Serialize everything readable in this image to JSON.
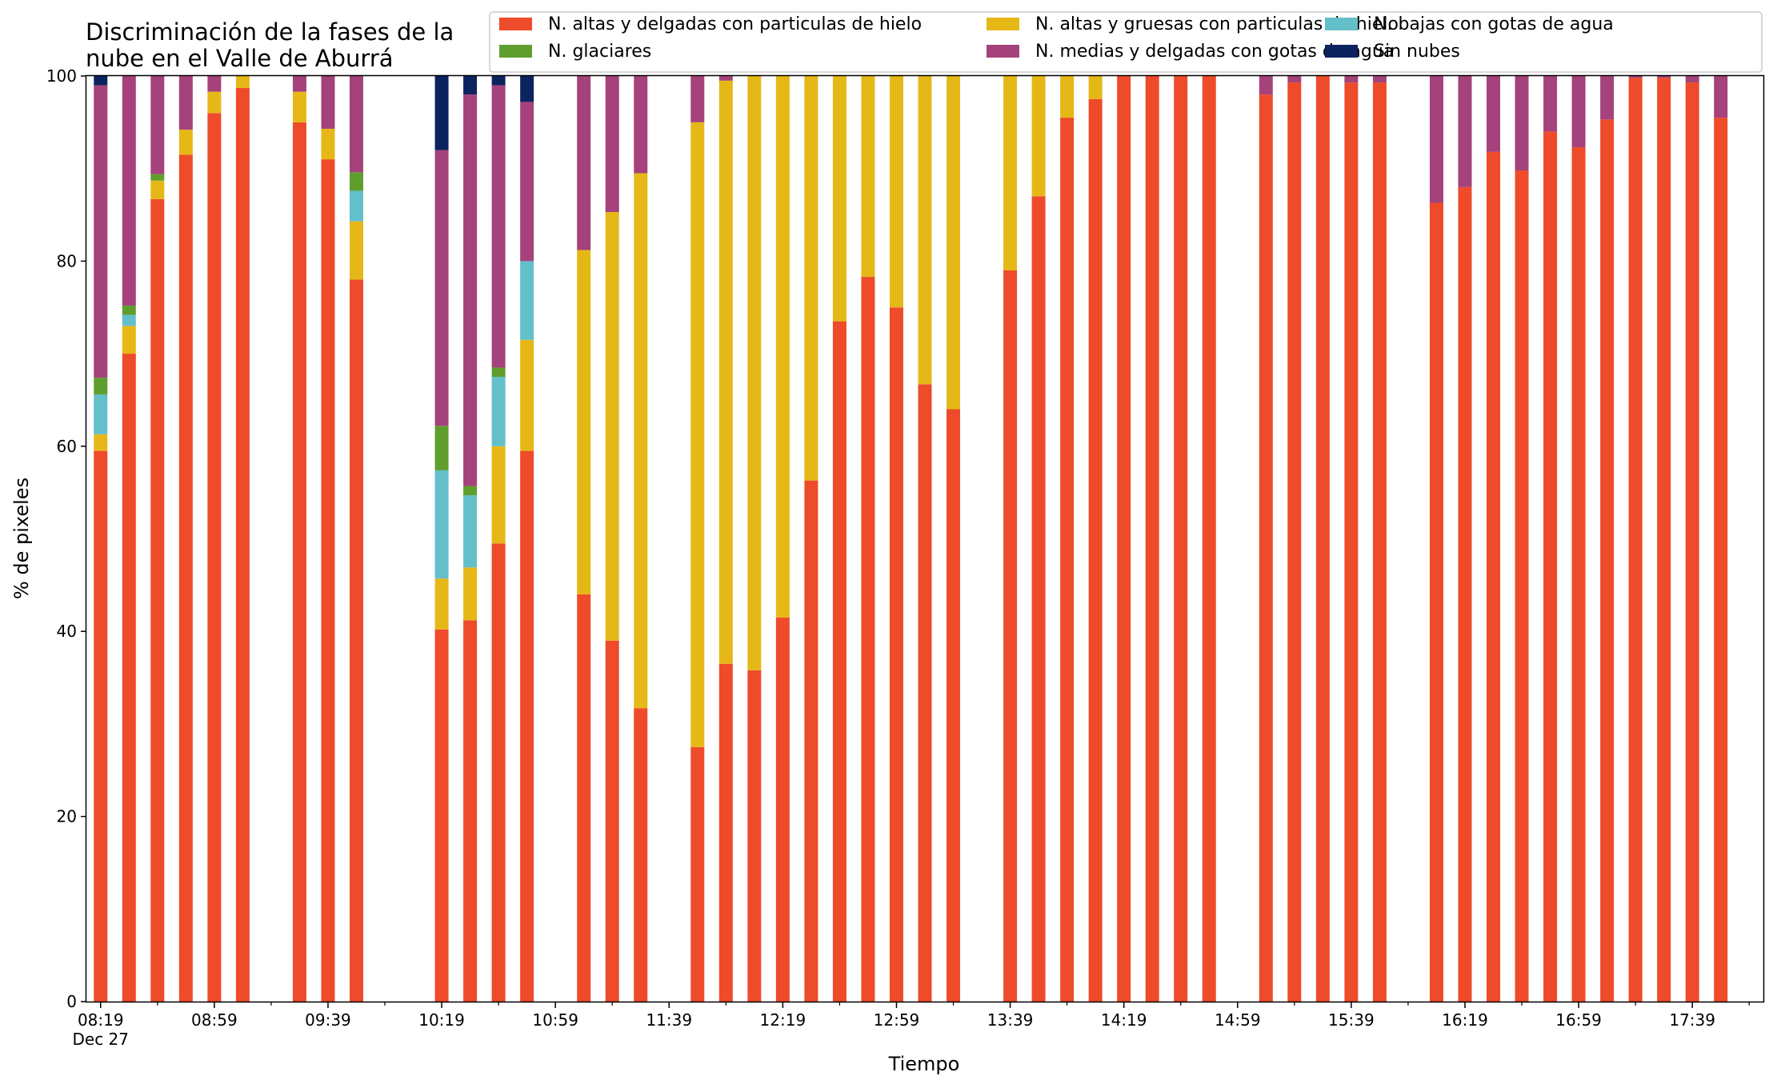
{
  "chart_data": {
    "type": "bar",
    "stacked": true,
    "title_lines": [
      "Discriminación de la fases de la",
      "nube en el Valle de Aburrá"
    ],
    "xlabel": "Tiempo",
    "ylabel": "% de pixeles",
    "ylim": [
      0,
      100
    ],
    "yticks": [
      0,
      20,
      40,
      60,
      80,
      100
    ],
    "xlim": [
      "08:14",
      "18:04"
    ],
    "xticks_major": [
      "08:19",
      "08:59",
      "09:39",
      "10:19",
      "10:59",
      "11:39",
      "12:19",
      "12:59",
      "13:39",
      "14:19",
      "14:59",
      "15:39",
      "16:19",
      "16:59",
      "17:39"
    ],
    "xticks_minor": [
      "08:39",
      "09:19",
      "09:59",
      "10:39",
      "11:19",
      "11:59",
      "12:39",
      "13:19",
      "13:59",
      "14:39",
      "15:19",
      "15:59",
      "16:39",
      "17:19",
      "17:59"
    ],
    "xtick_first_sublabel": "Dec 27",
    "legend": {
      "placement": "top-right",
      "columns": 3
    },
    "grid": false,
    "times": [
      "08:19",
      "08:29",
      "08:39",
      "08:49",
      "08:59",
      "09:09",
      "09:29",
      "09:39",
      "09:49",
      "10:19",
      "10:29",
      "10:39",
      "10:49",
      "11:09",
      "11:19",
      "11:29",
      "11:49",
      "11:59",
      "12:09",
      "12:19",
      "12:29",
      "12:39",
      "12:49",
      "12:59",
      "13:09",
      "13:19",
      "13:39",
      "13:49",
      "13:59",
      "14:09",
      "14:19",
      "14:29",
      "14:39",
      "14:49",
      "15:09",
      "15:19",
      "15:29",
      "15:39",
      "15:49",
      "16:09",
      "16:19",
      "16:29",
      "16:39",
      "16:49",
      "16:59",
      "17:09",
      "17:19",
      "17:29",
      "17:39",
      "17:49"
    ],
    "series": [
      {
        "name": "N. altas y delgadas con particulas de hielo",
        "color": "#ee4b2b",
        "values": [
          59.5,
          70,
          86.7,
          91.5,
          96,
          98.7,
          95,
          91,
          78,
          40.2,
          41.2,
          49.5,
          59.5,
          44,
          39,
          31.7,
          27.5,
          36.5,
          35.8,
          41.5,
          56.3,
          73.5,
          78.3,
          75,
          66.7,
          64,
          79,
          87,
          95.5,
          97.5,
          100,
          100,
          100,
          100,
          98,
          99.3,
          100,
          99.3,
          99.3,
          86.3,
          88,
          91.8,
          89.8,
          94,
          92.3,
          95.3,
          99.8,
          99.8,
          99.3,
          95.5
        ]
      },
      {
        "name": "N. altas y gruesas con particulas de hielo",
        "color": "#e6b817",
        "values": [
          1.8,
          3,
          2,
          2.7,
          2.3,
          1.3,
          3.3,
          3.3,
          6.3,
          5.5,
          5.7,
          10.5,
          12,
          37.2,
          46.3,
          57.8,
          67.5,
          63,
          64.2,
          58.5,
          43.7,
          26.5,
          21.7,
          25,
          33.3,
          36,
          21,
          13,
          4.5,
          2.5,
          0,
          0,
          0,
          0,
          0,
          0,
          0,
          0,
          0,
          0,
          0,
          0,
          0,
          0,
          0,
          0,
          0,
          0,
          0,
          0
        ]
      },
      {
        "name": "N. bajas con gotas de agua",
        "color": "#63bfca",
        "values": [
          4.3,
          1.2,
          0,
          0,
          0,
          0,
          0,
          0,
          3.3,
          11.7,
          7.8,
          7.5,
          8.5,
          0,
          0,
          0,
          0,
          0,
          0,
          0,
          0,
          0,
          0,
          0,
          0,
          0,
          0,
          0,
          0,
          0,
          0,
          0,
          0,
          0,
          0,
          0,
          0,
          0,
          0,
          0,
          0,
          0,
          0,
          0,
          0,
          0,
          0,
          0,
          0,
          0
        ]
      },
      {
        "name": "N. glaciares",
        "color": "#5f9e2d",
        "values": [
          1.8,
          1,
          0.7,
          0,
          0,
          0,
          0,
          0,
          2,
          4.8,
          1,
          1,
          0,
          0,
          0,
          0,
          0,
          0,
          0,
          0,
          0,
          0,
          0,
          0,
          0,
          0,
          0,
          0,
          0,
          0,
          0,
          0,
          0,
          0,
          0,
          0,
          0,
          0,
          0,
          0,
          0,
          0,
          0,
          0,
          0,
          0,
          0,
          0,
          0,
          0
        ]
      },
      {
        "name": "N. medias y delgadas con gotas de agua",
        "color": "#a5427b",
        "values": [
          31.6,
          24.8,
          10.6,
          5.8,
          1.7,
          0,
          1.7,
          5.7,
          10.4,
          29.8,
          42.3,
          30.5,
          17.2,
          18.8,
          14.7,
          10.5,
          5,
          0.5,
          0,
          0,
          0,
          0,
          0,
          0,
          0,
          0,
          0,
          0,
          0,
          0,
          0,
          0,
          0,
          0,
          2,
          0.7,
          0,
          0.7,
          0.7,
          13.7,
          12,
          8.2,
          10.2,
          6,
          7.7,
          4.7,
          0.2,
          0.2,
          0.7,
          4.5
        ]
      },
      {
        "name": "Sin nubes",
        "color": "#0b2460",
        "values": [
          1,
          0,
          0,
          0,
          0,
          0,
          0,
          0,
          0,
          8,
          2,
          1,
          2.8,
          0,
          0,
          0,
          0,
          0,
          0,
          0,
          0,
          0,
          0,
          0,
          0,
          0,
          0,
          0,
          0,
          0,
          0,
          0,
          0,
          0,
          0,
          0,
          0,
          0,
          0,
          0,
          0,
          0,
          0,
          0,
          0,
          0,
          0,
          0,
          0,
          0
        ]
      }
    ]
  }
}
